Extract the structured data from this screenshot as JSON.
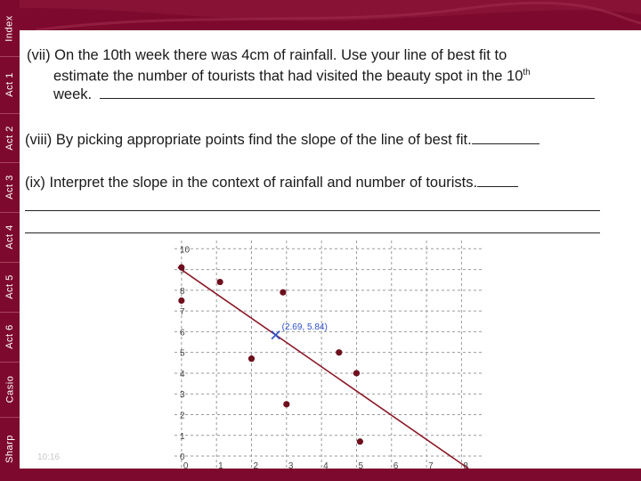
{
  "sidebar": {
    "tabs": [
      {
        "label": "Index"
      },
      {
        "label": "Act 1"
      },
      {
        "label": "Act 2"
      },
      {
        "label": "Act 3"
      },
      {
        "label": "Act 4"
      },
      {
        "label": "Act 5"
      },
      {
        "label": "Act 6"
      },
      {
        "label": "Casio"
      },
      {
        "label": "Sharp"
      }
    ]
  },
  "questions": {
    "q7": {
      "line1": "(vii) On the 10th week there was 4cm of rainfall. Use your line of best fit to",
      "line2a": "estimate   the number of tourists that had visited the beauty spot in the 10",
      "line2sup": "th",
      "line3": "week."
    },
    "q8": {
      "text": "(viii)  By picking appropriate points find the slope of the line of best fit."
    },
    "q9": {
      "text": "(ix)   Interpret the slope in the context of rainfall and number of tourists."
    }
  },
  "footer": {
    "time": "10:16"
  },
  "chart_data": {
    "type": "scatter",
    "x_ticks": [
      "0",
      "1",
      "2",
      "3",
      "4",
      "5",
      "6",
      "7",
      "8"
    ],
    "y_ticks": [
      "0",
      "1",
      "2",
      "3",
      "4",
      "5",
      "6",
      "7",
      "8",
      "9",
      "10"
    ],
    "xlim": [
      -0.2,
      8.6
    ],
    "ylim": [
      -0.6,
      10.4
    ],
    "grid": true,
    "points": [
      {
        "x": 0,
        "y": 9.1
      },
      {
        "x": 0,
        "y": 7.5
      },
      {
        "x": 1.1,
        "y": 8.4
      },
      {
        "x": 2.0,
        "y": 4.7
      },
      {
        "x": 2.9,
        "y": 7.9
      },
      {
        "x": 3.0,
        "y": 2.5
      },
      {
        "x": 4.5,
        "y": 5.0
      },
      {
        "x": 5.0,
        "y": 4.0
      },
      {
        "x": 5.1,
        "y": 0.7
      }
    ],
    "best_fit": {
      "slope": -1.17,
      "intercept": 8.99
    },
    "marked_point": {
      "x": 2.69,
      "y": 5.84,
      "label": "(2.69, 5.84)"
    }
  }
}
